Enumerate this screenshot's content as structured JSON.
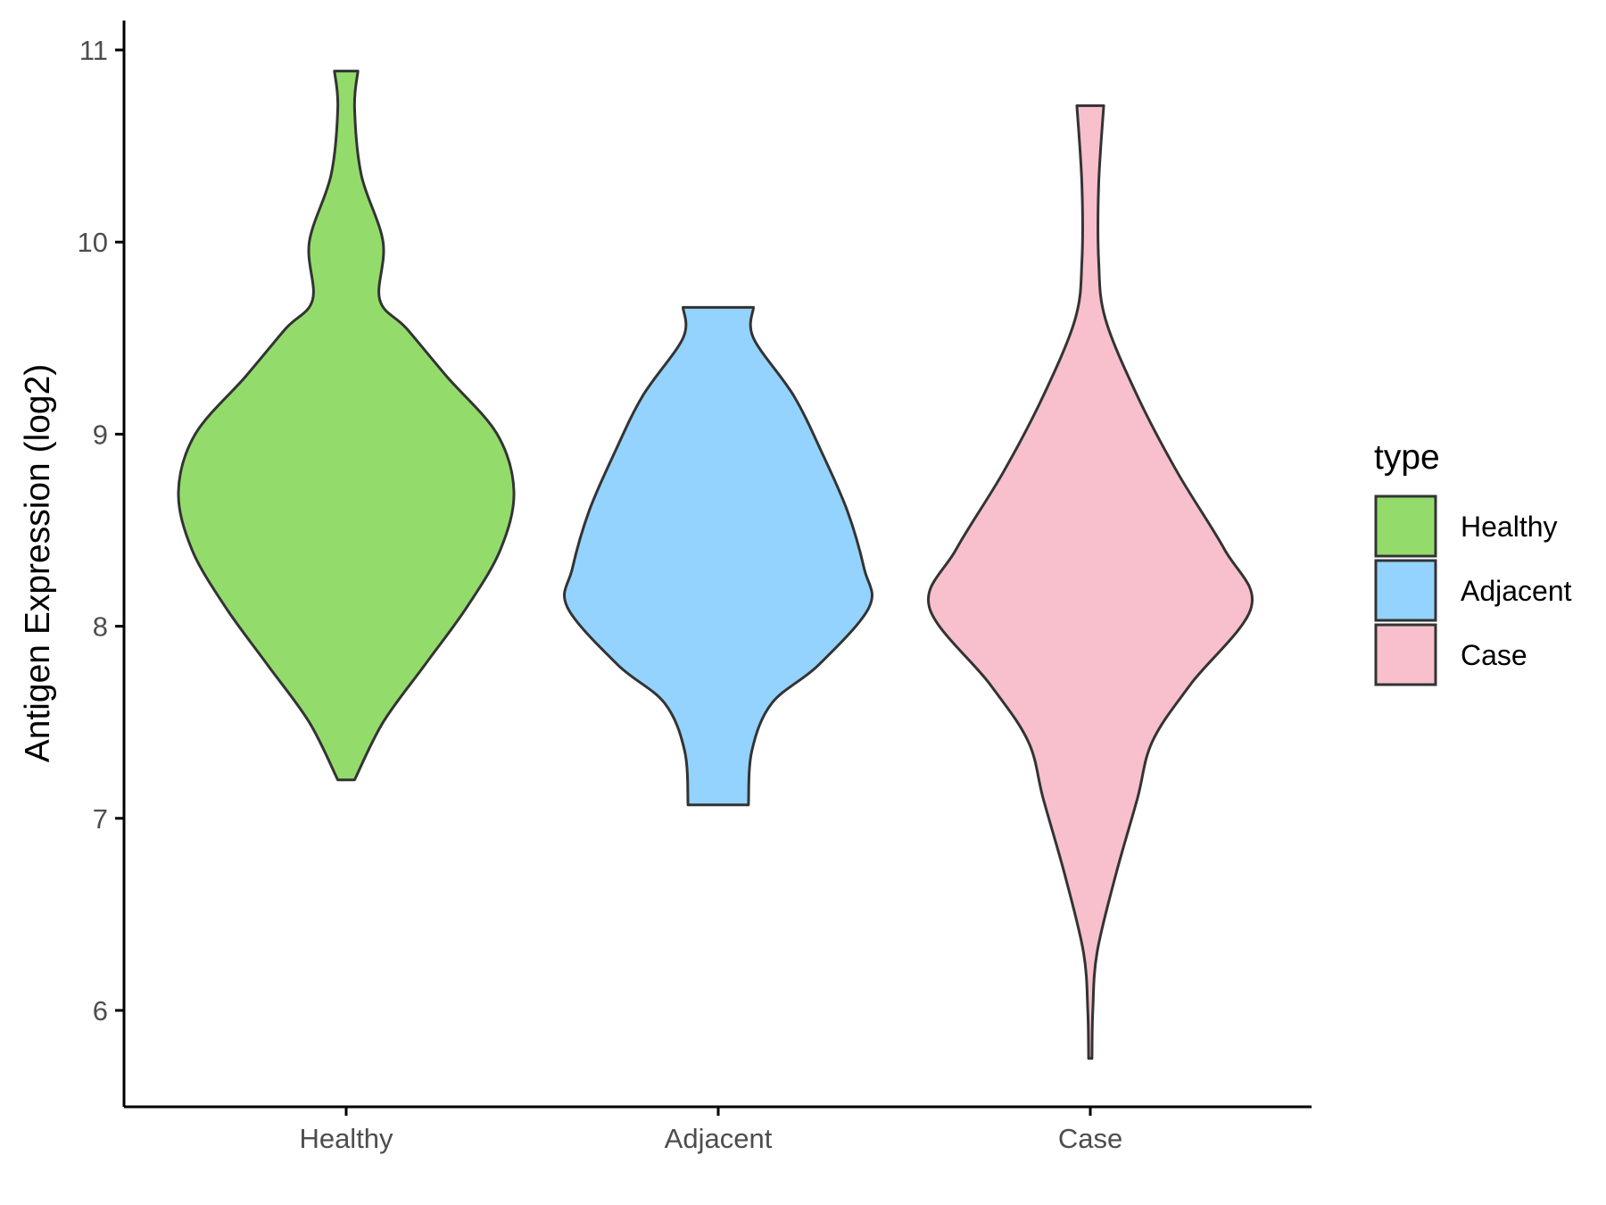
{
  "chart_data": {
    "type": "violin",
    "categories": [
      "Healthy",
      "Adjacent",
      "Case"
    ],
    "ylabel": "Antigen Expression (log2)",
    "xlabel": "",
    "ylim": [
      5.5,
      11.15
    ],
    "yticks": [
      "6",
      "7",
      "8",
      "9",
      "10",
      "11"
    ],
    "grid": false,
    "legend": {
      "title": "type",
      "position": "right",
      "entries": [
        "Healthy",
        "Adjacent",
        "Case"
      ]
    },
    "colors": {
      "Healthy": "#93dc6b",
      "Adjacent": "#93d3fd",
      "Case": "#f7c0cc",
      "outline": "#333333"
    },
    "series": [
      {
        "category": "Healthy",
        "min": 7.2,
        "max": 10.89,
        "density": [
          [
            7.2,
            0.05
          ],
          [
            7.5,
            0.22
          ],
          [
            7.8,
            0.47
          ],
          [
            8.1,
            0.72
          ],
          [
            8.4,
            0.92
          ],
          [
            8.7,
            1.0
          ],
          [
            9.0,
            0.9
          ],
          [
            9.3,
            0.6
          ],
          [
            9.55,
            0.36
          ],
          [
            9.7,
            0.2
          ],
          [
            10.0,
            0.22
          ],
          [
            10.35,
            0.09
          ],
          [
            10.7,
            0.05
          ],
          [
            10.89,
            0.07
          ]
        ]
      },
      {
        "category": "Adjacent",
        "min": 7.07,
        "max": 9.66,
        "density": [
          [
            7.07,
            0.18
          ],
          [
            7.35,
            0.2
          ],
          [
            7.6,
            0.32
          ],
          [
            7.8,
            0.6
          ],
          [
            8.1,
            0.9
          ],
          [
            8.3,
            0.87
          ],
          [
            8.6,
            0.77
          ],
          [
            8.9,
            0.62
          ],
          [
            9.2,
            0.45
          ],
          [
            9.5,
            0.21
          ],
          [
            9.66,
            0.21
          ]
        ]
      },
      {
        "category": "Case",
        "min": 5.75,
        "max": 10.71,
        "density": [
          [
            5.75,
            0.01
          ],
          [
            6.0,
            0.015
          ],
          [
            6.3,
            0.04
          ],
          [
            6.7,
            0.15
          ],
          [
            7.1,
            0.28
          ],
          [
            7.4,
            0.37
          ],
          [
            7.7,
            0.6
          ],
          [
            8.1,
            0.96
          ],
          [
            8.4,
            0.8
          ],
          [
            8.8,
            0.52
          ],
          [
            9.2,
            0.28
          ],
          [
            9.6,
            0.09
          ],
          [
            9.9,
            0.05
          ],
          [
            10.3,
            0.05
          ],
          [
            10.71,
            0.08
          ]
        ]
      }
    ]
  }
}
